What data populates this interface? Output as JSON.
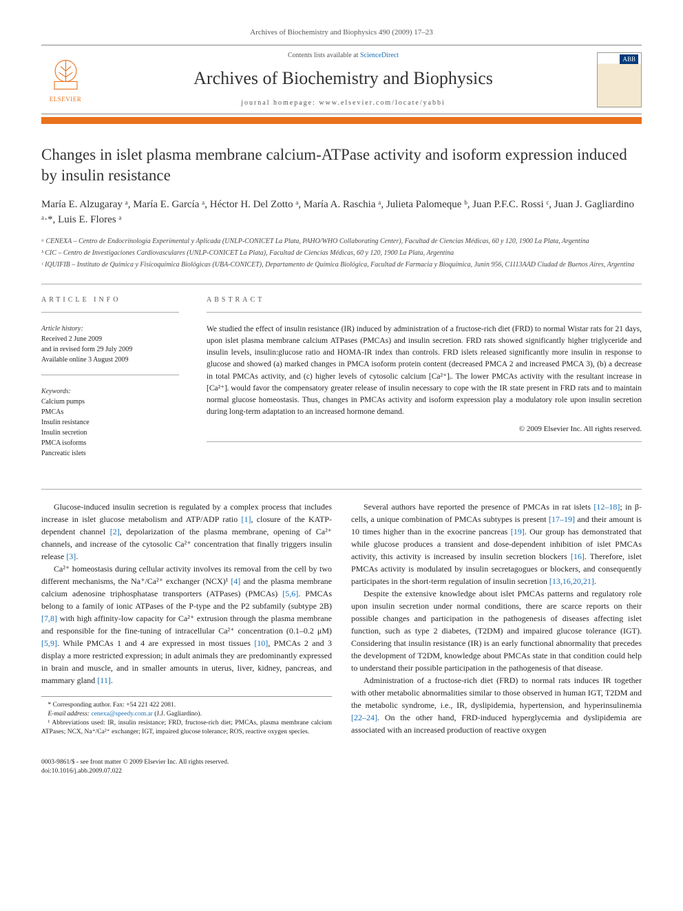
{
  "header": {
    "citation": "Archives of Biochemistry and Biophysics 490 (2009) 17–23",
    "contents_prefix": "Contents lists available at ",
    "contents_link": "ScienceDirect",
    "journal_name": "Archives of Biochemistry and Biophysics",
    "homepage_prefix": "journal homepage: ",
    "homepage_url": "www.elsevier.com/locate/yabbi",
    "publisher": "ELSEVIER",
    "colors": {
      "orange": "#e9711c",
      "link_blue": "#1a6fb5",
      "cover_banner": "#003a7a"
    }
  },
  "article": {
    "title": "Changes in islet plasma membrane calcium-ATPase activity and isoform expression induced by insulin resistance",
    "authors_html": "María E. Alzugaray ᵃ, María E. García ᵃ, Héctor H. Del Zotto ᵃ, María A. Raschia ᵃ, Julieta Palomeque ᵇ, Juan P.F.C. Rossi ᶜ, Juan J. Gagliardino ᵃ·*, Luis E. Flores ᵃ",
    "affiliations": {
      "a": "ᵃ CENEXA – Centro de Endocrinología Experimental y Aplicada (UNLP-CONICET La Plata, PAHO/WHO Collaborating Center), Facultad de Ciencias Médicas, 60 y 120, 1900 La Plata, Argentina",
      "b": "ᵇ CIC – Centro de Investigaciones Cardiovasculares (UNLP-CONICET La Plata), Facultad de Ciencias Médicas, 60 y 120, 1900 La Plata, Argentina",
      "c": "ᶜ IQUIFIB – Instituto de Química y Fisicoquímica Biológicas (UBA-CONICET), Departamento de Química Biológica, Facultad de Farmacia y Bioquímica, Junín 956, C1113AAD Ciudad de Buenos Aires, Argentina"
    }
  },
  "info": {
    "heading": "ARTICLE INFO",
    "history_label": "Article history:",
    "history": {
      "received": "Received 2 June 2009",
      "revised": "and in revised form 29 July 2009",
      "online": "Available online 3 August 2009"
    },
    "keywords_label": "Keywords:",
    "keywords": [
      "Calcium pumps",
      "PMCAs",
      "Insulin resistance",
      "Insulin secretion",
      "PMCA isoforms",
      "Pancreatic islets"
    ]
  },
  "abstract": {
    "heading": "ABSTRACT",
    "text": "We studied the effect of insulin resistance (IR) induced by administration of a fructose-rich diet (FRD) to normal Wistar rats for 21 days, upon islet plasma membrane calcium ATPases (PMCAs) and insulin secretion. FRD rats showed significantly higher triglyceride and insulin levels, insulin:glucose ratio and HOMA-IR index than controls. FRD islets released significantly more insulin in response to glucose and showed (a) marked changes in PMCA isoform protein content (decreased PMCA 2 and increased PMCA 3), (b) a decrease in total PMCAs activity, and (c) higher levels of cytosolic calcium [Ca²⁺]ᵢ. The lower PMCAs activity with the resultant increase in [Ca²⁺]ᵢ would favor the compensatory greater release of insulin necessary to cope with the IR state present in FRD rats and to maintain normal glucose homeostasis. Thus, changes in PMCAs activity and isoform expression play a modulatory role upon insulin secretion during long-term adaptation to an increased hormone demand.",
    "copyright": "© 2009 Elsevier Inc. All rights reserved."
  },
  "body": {
    "p1": "Glucose-induced insulin secretion is regulated by a complex process that includes increase in islet glucose metabolism and ATP/ADP ratio [1], closure of the KATP-dependent channel [2], depolarization of the plasma membrane, opening of Ca²⁺ channels, and increase of the cytosolic Ca²⁺ concentration that finally triggers insulin release [3].",
    "p2": "Ca²⁺ homeostasis during cellular activity involves its removal from the cell by two different mechanisms, the Na⁺/Ca²⁺ exchanger (NCX)¹ [4] and the plasma membrane calcium adenosine triphosphatase transporters (ATPases) (PMCAs) [5,6]. PMCAs belong to a family of ionic ATPases of the P-type and the P2 subfamily (subtype 2B) [7,8] with high affinity-low capacity for Ca²⁺ extrusion through the plasma membrane and responsible for the fine-tuning of intracellular Ca²⁺ concentration (0.1–0.2 μM) [5,9]. While PMCAs 1 and 4 are expressed in most tissues [10], PMCAs 2 and 3 display a more restricted expression; in adult animals they are predominantly expressed in brain and muscle, and in smaller amounts in uterus, liver, kidney, pancreas, and mammary gland [11].",
    "p3": "Several authors have reported the presence of PMCAs in rat islets [12–18]; in β-cells, a unique combination of PMCAs subtypes is present [17–19] and their amount is 10 times higher than in the exocrine pancreas [19]. Our group has demonstrated that while glucose produces a transient and dose-dependent inhibition of islet PMCAs activity, this activity is increased by insulin secretion blockers [16]. Therefore, islet PMCAs activity is modulated by insulin secretagogues or blockers, and consequently participates in the short-term regulation of insulin secretion [13,16,20,21].",
    "p4": "Despite the extensive knowledge about islet PMCAs patterns and regulatory role upon insulin secretion under normal conditions, there are scarce reports on their possible changes and participation in the pathogenesis of diseases affecting islet function, such as type 2 diabetes, (T2DM) and impaired glucose tolerance (IGT). Considering that insulin resistance (IR) is an early functional abnormality that precedes the development of T2DM, knowledge about PMCAs state in that condition could help to understand their possible participation in the pathogenesis of that disease.",
    "p5": "Administration of a fructose-rich diet (FRD) to normal rats induces IR together with other metabolic abnormalities similar to those observed in human IGT, T2DM and the metabolic syndrome, i.e., IR, dyslipidemia, hypertension, and hyperinsulinemia [22–24]. On the other hand, FRD-induced hyperglycemia and dyslipidemia are associated with an increased production of reactive oxygen"
  },
  "footer": {
    "corr_star": "* Corresponding author. Fax: +54 221 422 2081.",
    "email_label": "E-mail address: ",
    "email": "cenexa@speedy.com.ar",
    "email_name": " (J.J. Gagliardino).",
    "abbrev": "¹ Abbreviations used: IR, insulin resistance; FRD, fructose-rich diet; PMCAs, plasma membrane calcium ATPases; NCX, Na⁺/Ca²⁺ exchanger; IGT, impaired glucose tolerance; ROS, reactive oxygen species.",
    "issn_line": "0003-9861/$ - see front matter © 2009 Elsevier Inc. All rights reserved.",
    "doi_line": "doi:10.1016/j.abb.2009.07.022"
  }
}
